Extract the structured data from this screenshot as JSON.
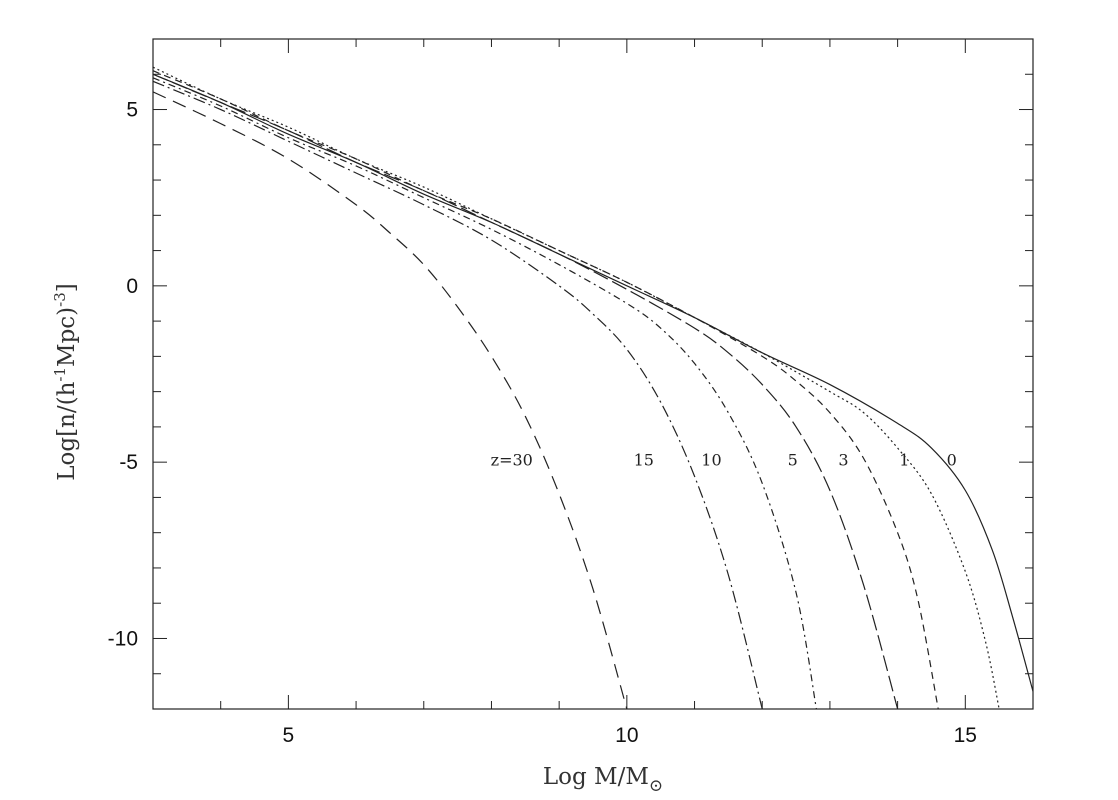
{
  "chart_data": {
    "type": "line",
    "title": "",
    "xlabel": "Log M/M",
    "xlabel_sub": "⊙",
    "ylabel": "Log[n/(h",
    "ylabel_sup1": "-1",
    "ylabel_mid": "Mpc)",
    "ylabel_sup2": "-3",
    "ylabel_end": "]",
    "xlim": [
      3,
      16
    ],
    "ylim": [
      -12,
      7
    ],
    "x_ticks_labeled": [
      {
        "value": 5,
        "label": "5"
      },
      {
        "value": 10,
        "label": "10"
      },
      {
        "value": 15,
        "label": "15"
      }
    ],
    "y_ticks_labeled": [
      {
        "value": 5,
        "label": "5"
      },
      {
        "value": 0,
        "label": "0"
      },
      {
        "value": -5,
        "label": "-5"
      },
      {
        "value": -10,
        "label": "-10"
      }
    ],
    "x_minor_step": 1,
    "y_minor_step": 1,
    "grid": false,
    "legend": "none",
    "series": [
      {
        "label": "z=30",
        "label_pos": [
          8.3,
          -5.1
        ],
        "dash": "14,8",
        "x": [
          3,
          4,
          5,
          6,
          6.5,
          7,
          7.5,
          8,
          8.5,
          9,
          9.5,
          10.0
        ],
        "y": [
          5.5,
          4.6,
          3.6,
          2.3,
          1.5,
          0.6,
          -0.6,
          -2.0,
          -3.7,
          -5.9,
          -8.6,
          -12
        ]
      },
      {
        "label": "15",
        "label_pos": [
          10.25,
          -5.1
        ],
        "dash": "12,4,2,4",
        "x": [
          3,
          4,
          5,
          6,
          7,
          8,
          9,
          9.5,
          10,
          10.5,
          11,
          11.5,
          12.0
        ],
        "y": [
          5.8,
          5.0,
          4.1,
          3.2,
          2.3,
          1.3,
          0.0,
          -0.8,
          -1.8,
          -3.3,
          -5.4,
          -8.2,
          -12
        ]
      },
      {
        "label": "10",
        "label_pos": [
          11.25,
          -5.1
        ],
        "dash": "7,4,2,4",
        "x": [
          3,
          4,
          5,
          6,
          7,
          8,
          9,
          10,
          10.5,
          11,
          11.5,
          12,
          12.5,
          12.8
        ],
        "y": [
          5.9,
          5.1,
          4.2,
          3.4,
          2.5,
          1.6,
          0.6,
          -0.5,
          -1.2,
          -2.2,
          -3.6,
          -5.6,
          -8.7,
          -12
        ]
      },
      {
        "label": "5",
        "label_pos": [
          12.45,
          -5.1
        ],
        "dash": "16,5",
        "x": [
          3,
          4,
          5,
          6,
          7,
          8,
          9,
          10,
          11,
          11.5,
          12,
          12.5,
          13,
          13.5,
          14.0
        ],
        "y": [
          6.0,
          5.2,
          4.4,
          3.5,
          2.7,
          1.8,
          0.9,
          -0.1,
          -1.2,
          -1.9,
          -2.8,
          -4.0,
          -5.8,
          -8.5,
          -12
        ]
      },
      {
        "label": "3",
        "label_pos": [
          13.2,
          -5.1
        ],
        "dash": "7,5",
        "x": [
          3,
          4,
          5,
          6,
          7,
          8,
          9,
          10,
          11,
          12,
          12.5,
          13,
          13.5,
          14,
          14.3,
          14.6
        ],
        "y": [
          6.1,
          5.3,
          4.4,
          3.6,
          2.7,
          1.9,
          1.0,
          0.1,
          -0.9,
          -2.0,
          -2.7,
          -3.6,
          -4.9,
          -7.0,
          -8.9,
          -12
        ]
      },
      {
        "label": "1",
        "label_pos": [
          14.1,
          -5.1
        ],
        "dash": "2,3",
        "x": [
          3,
          4,
          5,
          6,
          7,
          8,
          9,
          10,
          11,
          12,
          13,
          13.5,
          14,
          14.5,
          15,
          15.3,
          15.5
        ],
        "y": [
          6.2,
          5.3,
          4.5,
          3.6,
          2.8,
          1.9,
          1.0,
          0.1,
          -0.9,
          -1.9,
          -3.0,
          -3.6,
          -4.6,
          -5.9,
          -8.1,
          -10.1,
          -12
        ]
      },
      {
        "label": "0",
        "label_pos": [
          14.8,
          -5.1
        ],
        "dash": "",
        "x": [
          3,
          4,
          5,
          6,
          7,
          8,
          9,
          10,
          11,
          12,
          13,
          14,
          14.5,
          15,
          15.4,
          15.7,
          16.0
        ],
        "y": [
          6.0,
          5.2,
          4.3,
          3.5,
          2.6,
          1.8,
          0.9,
          0.0,
          -0.9,
          -1.9,
          -2.8,
          -3.9,
          -4.6,
          -5.8,
          -7.5,
          -9.4,
          -11.5
        ]
      }
    ]
  }
}
